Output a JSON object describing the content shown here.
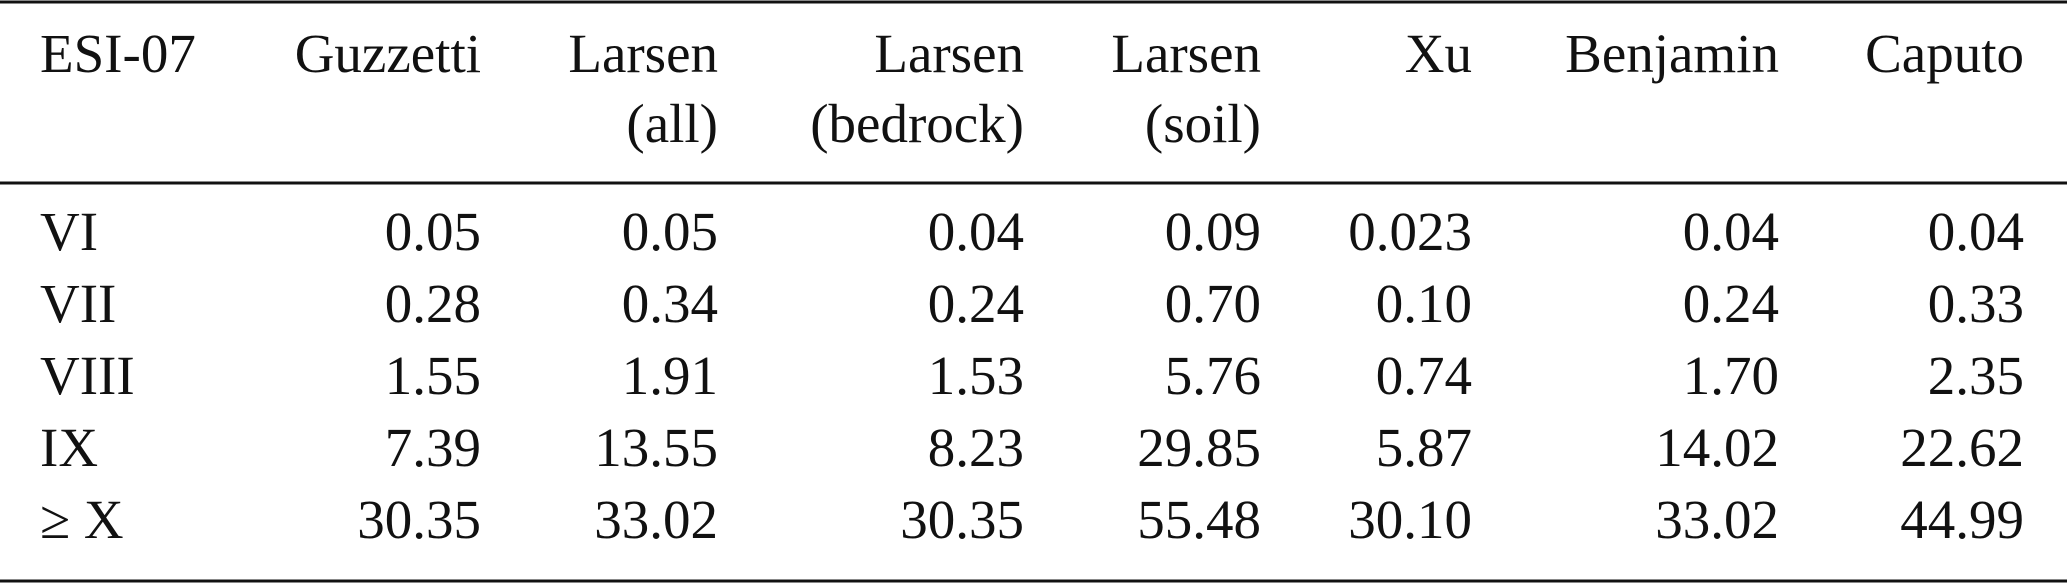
{
  "table": {
    "header": [
      [
        "ESI-07"
      ],
      [
        "Guzzetti"
      ],
      [
        "Larsen",
        "(all)"
      ],
      [
        "Larsen",
        "(bedrock)"
      ],
      [
        "Larsen",
        "(soil)"
      ],
      [
        "Xu"
      ],
      [
        "Benjamin"
      ],
      [
        "Caputo"
      ]
    ],
    "rows": [
      [
        "VI",
        "0.05",
        "0.05",
        "0.04",
        "0.09",
        "0.023",
        "0.04",
        "0.04"
      ],
      [
        "VII",
        "0.28",
        "0.34",
        "0.24",
        "0.70",
        "0.10",
        "0.24",
        "0.33"
      ],
      [
        "VIII",
        "1.55",
        "1.91",
        "1.53",
        "5.76",
        "0.74",
        "1.70",
        "2.35"
      ],
      [
        "IX",
        "7.39",
        "13.55",
        "8.23",
        "29.85",
        "5.87",
        "14.02",
        "22.62"
      ],
      [
        "≥ X",
        "30.35",
        "33.02",
        "30.35",
        "55.48",
        "30.10",
        "33.02",
        "44.99"
      ]
    ]
  }
}
